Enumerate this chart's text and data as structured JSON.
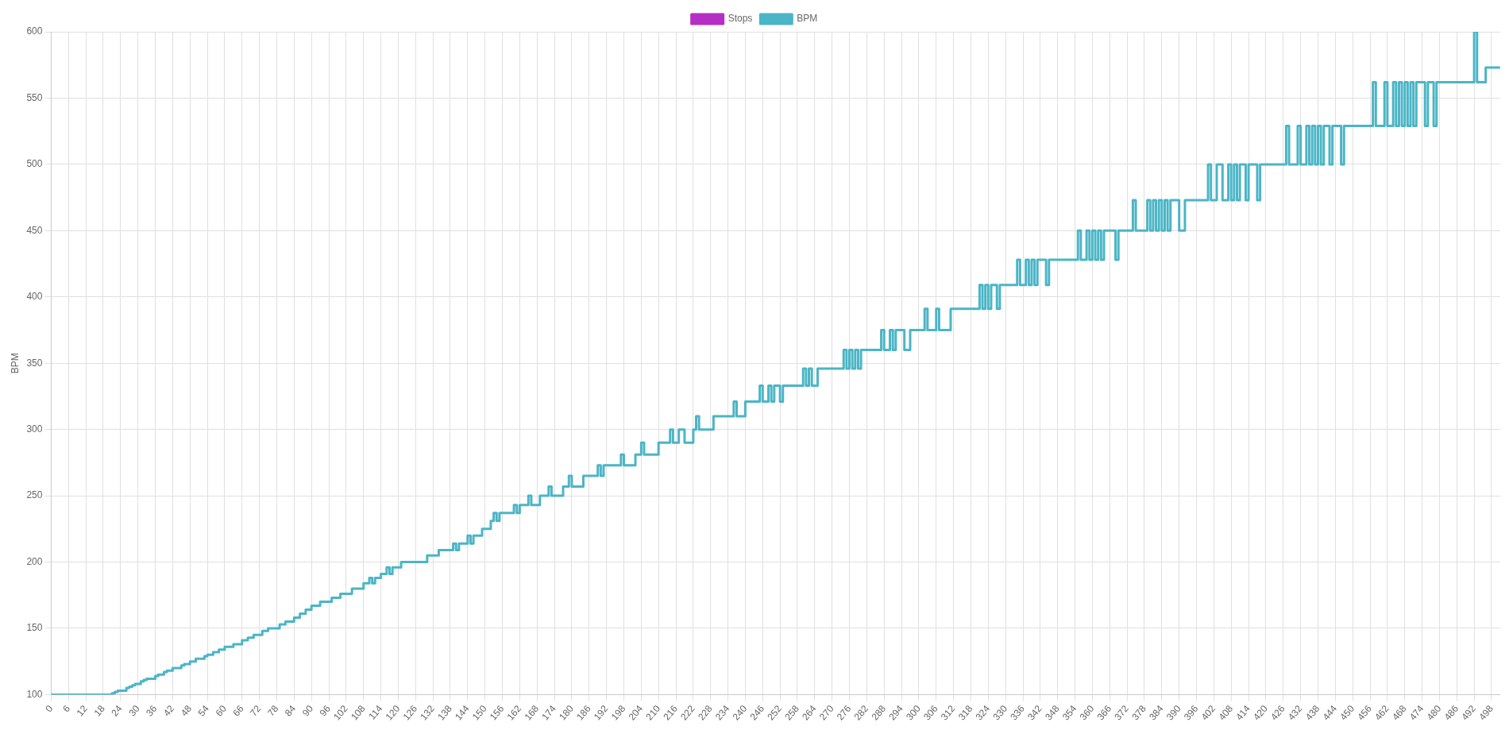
{
  "chart_data": {
    "type": "step",
    "ylabel": "BPM",
    "legend": "top",
    "grid": true,
    "marker": "none",
    "xlim": [
      0,
      501
    ],
    "xticks": [
      0,
      6,
      12,
      18,
      24,
      30,
      36,
      42,
      48,
      54,
      60,
      66,
      72,
      78,
      84,
      90,
      96,
      102,
      108,
      114,
      120,
      126,
      132,
      138,
      144,
      150,
      156,
      162,
      168,
      174,
      180,
      186,
      192,
      198,
      204,
      210,
      216,
      222,
      228,
      234,
      240,
      246,
      252,
      258,
      264,
      270,
      276,
      282,
      288,
      294,
      300,
      306,
      312,
      318,
      324,
      330,
      336,
      342,
      348,
      354,
      360,
      366,
      372,
      378,
      384,
      390,
      396,
      402,
      408,
      414,
      420,
      426,
      432,
      438,
      444,
      450,
      456,
      462,
      468,
      474,
      480,
      486,
      492,
      498
    ],
    "ylim": [
      100,
      600
    ],
    "yticks": [
      100,
      150,
      200,
      250,
      300,
      350,
      400,
      450,
      500,
      550,
      600
    ],
    "series": [
      {
        "name": "Stops",
        "color": "#b52fc4"
      },
      {
        "name": "BPM",
        "color": "#4bb5c6",
        "x": [
          0,
          21,
          22,
          23,
          26,
          27,
          28,
          29,
          31,
          32,
          33,
          36,
          37,
          39,
          40,
          42,
          45,
          46,
          48,
          50,
          53,
          54,
          56,
          58,
          60,
          63,
          66,
          68,
          70,
          73,
          75,
          79,
          81,
          84,
          86,
          88,
          90,
          93,
          97,
          100,
          104,
          108,
          110,
          111,
          112,
          114,
          116,
          117,
          118,
          121,
          130,
          134,
          139,
          140,
          141,
          144,
          145,
          146,
          149,
          152,
          153,
          154,
          155,
          160,
          161,
          162,
          165,
          166,
          169,
          172,
          173,
          177,
          179,
          180,
          184,
          189,
          190,
          191,
          197,
          198,
          202,
          204,
          205,
          210,
          214,
          215,
          217,
          219,
          222,
          223,
          224,
          229,
          236,
          237,
          240,
          245,
          246,
          248,
          249,
          250,
          252,
          253,
          260,
          261,
          262,
          263,
          265,
          274,
          275,
          276,
          277,
          278,
          279,
          280,
          287,
          288,
          290,
          291,
          292,
          295,
          297,
          302,
          303,
          306,
          307,
          311,
          321,
          322,
          323,
          324,
          325,
          327,
          328,
          334,
          335,
          337,
          338,
          339,
          340,
          341,
          344,
          345,
          355,
          356,
          358,
          359,
          360,
          361,
          362,
          363,
          364,
          368,
          369,
          374,
          375,
          379,
          380,
          381,
          382,
          383,
          384,
          385,
          386,
          387,
          390,
          392,
          400,
          401,
          403,
          405,
          407,
          408,
          409,
          410,
          411,
          413,
          414,
          417,
          418,
          427,
          428,
          431,
          432,
          434,
          435,
          436,
          437,
          438,
          439,
          440,
          442,
          443,
          446,
          447,
          457,
          458,
          461,
          462,
          464,
          465,
          466,
          467,
          468,
          469,
          470,
          471,
          472,
          475,
          476,
          478,
          479,
          492,
          493,
          496,
          501
        ],
        "values": [
          100,
          101,
          102,
          103,
          105,
          106,
          107,
          108,
          110,
          111,
          112,
          114,
          115,
          117,
          118,
          120,
          122,
          123,
          125,
          127,
          129,
          130,
          132,
          134,
          136,
          138,
          141,
          143,
          145,
          148,
          150,
          153,
          155,
          158,
          161,
          164,
          167,
          170,
          173,
          176,
          180,
          184,
          188,
          184,
          188,
          191,
          196,
          191,
          196,
          200,
          205,
          209,
          214,
          209,
          214,
          220,
          214,
          220,
          225,
          231,
          237,
          231,
          237,
          243,
          237,
          243,
          250,
          243,
          250,
          257,
          250,
          257,
          265,
          257,
          265,
          273,
          265,
          273,
          281,
          273,
          281,
          290,
          281,
          290,
          300,
          290,
          300,
          290,
          300,
          310,
          300,
          310,
          321,
          310,
          321,
          333,
          321,
          333,
          321,
          333,
          321,
          333,
          346,
          333,
          346,
          333,
          346,
          360,
          346,
          360,
          346,
          360,
          346,
          360,
          375,
          360,
          375,
          360,
          375,
          360,
          375,
          391,
          375,
          391,
          375,
          391,
          409,
          391,
          409,
          391,
          409,
          391,
          409,
          428,
          409,
          428,
          409,
          428,
          409,
          428,
          409,
          428,
          450,
          428,
          450,
          428,
          450,
          428,
          450,
          428,
          450,
          428,
          450,
          473,
          450,
          473,
          450,
          473,
          450,
          473,
          450,
          473,
          450,
          473,
          450,
          473,
          500,
          473,
          500,
          473,
          500,
          473,
          500,
          473,
          500,
          473,
          500,
          473,
          500,
          529,
          500,
          529,
          500,
          529,
          500,
          529,
          500,
          529,
          500,
          529,
          500,
          529,
          500,
          529,
          562,
          529,
          562,
          529,
          562,
          529,
          562,
          529,
          562,
          529,
          562,
          529,
          562,
          529,
          562,
          529,
          562,
          600,
          562,
          573,
          573
        ]
      }
    ]
  }
}
